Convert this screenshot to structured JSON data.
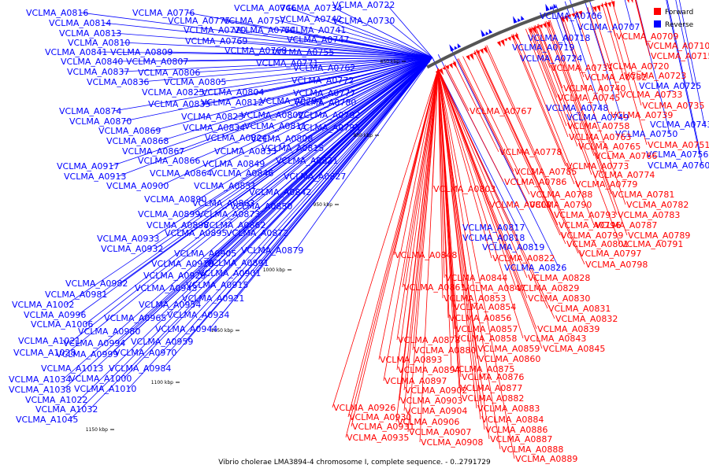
{
  "caption": "Vibrio cholerae LMA3894-4 chromosome I, complete sequence. - 0..2791729",
  "legend": [
    {
      "label": "Forward",
      "color": "#ff0000"
    },
    {
      "label": "Reverse",
      "color": "#0000ff"
    }
  ],
  "colors": {
    "forward": "#ff0000",
    "reverse": "#0000ff",
    "backbone": "#555555"
  },
  "ticks": [
    "850 kbp",
    "900 kbp",
    "950 kbp",
    "1000 kbp",
    "1050 kbp",
    "1100 kbp",
    "1150 kbp"
  ],
  "reverse_labels": [
    "VCLMA_A0816",
    "VCLMA_A0776",
    "VCLMA_A0746",
    "VCLMA_A0734",
    "VCLMA_A0722",
    "VCLMA_A0814",
    "VCLMA_A0775",
    "VCLMA_A0757",
    "VCLMA_A0742",
    "VCLMA_A0730",
    "VCLMA_A0813",
    "VCLMA_A0770",
    "VCLMA_A0754",
    "VCLMA_A0741",
    "VCLMA_A0810",
    "VCLMA_A0769",
    "VCLMA_A0747",
    "VCLMA_A0841",
    "VCLMA_A0809",
    "VCLMA_A0768",
    "VCLMA_A0755",
    "VCLMA_A0840",
    "VCLMA_A0807",
    "VCLMA_A0771",
    "VCLMA_A0837",
    "VCLMA_A0806",
    "VCLMA_A0762",
    "VCLMA_A0836",
    "VCLMA_A0805",
    "VCLMA_A0772",
    "VCLMA_A0825",
    "VCLMA_A0804",
    "VCLMA_A0777",
    "VCLMA_A0835",
    "VCLMA_A0812",
    "VCLMA_A0794",
    "VCLMA_A0780",
    "VCLMA_A0874",
    "VCLMA_A0823",
    "VCLMA_A0802",
    "VCLMA_A0792",
    "VCLMA_A0870",
    "VCLMA_A0834",
    "VCLMA_A0811",
    "VCLMA_A0795",
    "VCLMA_A0869",
    "VCLMA_A0824",
    "VCLMA_A0808",
    "VCLMA_A0868",
    "VCLMA_A0833",
    "VCLMA_A0815",
    "VCLMA_A0867",
    "VCLMA_A0866",
    "VCLMA_A0849",
    "VCLMA_A0821",
    "VCLMA_A0917",
    "VCLMA_A0864",
    "VCLMA_A0846",
    "VCLMA_A0827",
    "VCLMA_A0913",
    "VCLMA_A0851",
    "VCLMA_A0842",
    "VCLMA_A0900",
    "VCLMA_A0890",
    "VCLMA_A0863",
    "VCLMA_A0850",
    "VCLMA_A0899",
    "VCLMA_A0873",
    "VCLMA_A0898",
    "VCLMA_A0862",
    "VCLMA_A0895",
    "VCLMA_A0872",
    "VCLMA_A0933",
    "VCLMA_A0932",
    "VCLMA_A0905",
    "VCLMA_A0879",
    "VCLMA_A0919",
    "VCLMA_A0891",
    "VCLMA_A0929",
    "VCLMA_A0901",
    "VCLMA_A0982",
    "VCLMA_A0943",
    "VCLMA_A0915",
    "VCLMA_A0981",
    "VCLMA_A0921",
    "VCLMA_A1002",
    "VCLMA_A0954",
    "VCLMA_A0996",
    "VCLMA_A0965",
    "VCLMA_A0934",
    "VCLMA_A1006",
    "VCLMA_A0980",
    "VCLMA_A0944",
    "VCLMA_A1021",
    "VCLMA_A0994",
    "VCLMA_A0959",
    "VCLMA_A1028",
    "VCLMA_A0999",
    "VCLMA_A0970",
    "VCLMA_A1013",
    "VCLMA_A0984",
    "VCLMA_A1034",
    "VCLMA_A1000",
    "VCLMA_A1038",
    "VCLMA_A1010",
    "VCLMA_A1022",
    "VCLMA_A1032",
    "VCLMA_A1045",
    "VCLMA_A0706",
    "VCLMA_A0707",
    "VCLMA_A0718",
    "VCLMA_A0719",
    "VCLMA_A0724",
    "VCLMA_A0725",
    "VCLMA_A0748",
    "VCLMA_A0749",
    "VCLMA_A0743",
    "VCLMA_A0750",
    "VCLMA_A0756",
    "VCLMA_A0760",
    "VCLMA_A0817",
    "VCLMA_A0818",
    "VCLMA_A0819",
    "VCLMA_A0826"
  ],
  "forward_labels": [
    "VCLMA_A0709",
    "VCLMA_A0710",
    "VCLMA_A0715",
    "VCLMA_A0720",
    "VCLMA_A0731",
    "VCLMA_A0723",
    "VCLMA_A0732",
    "VCLMA_A0740",
    "VCLMA_A0733",
    "VCLMA_A0745",
    "VCLMA_A0735",
    "VCLMA_A0767",
    "VCLMA_A0739",
    "VCLMA_A0758",
    "VCLMA_A0763",
    "VCLMA_A0765",
    "VCLMA_A0751",
    "VCLMA_A0766",
    "VCLMA_A0778",
    "VCLMA_A0773",
    "VCLMA_A0785",
    "VCLMA_A0774",
    "VCLMA_A0786",
    "VCLMA_A0779",
    "VCLMA_A0803",
    "VCLMA_A0788",
    "VCLMA_A0781",
    "VCLMA_A0800",
    "VCLMA_A0790",
    "VCLMA_A0782",
    "VCLMA_A0793",
    "VCLMA_A0783",
    "VCLMA_A0796",
    "VCLMA_A0787",
    "VCLMA_A0799",
    "VCLMA_A0789",
    "VCLMA_A0801",
    "VCLMA_A0791",
    "VCLMA_A0797",
    "VCLMA_A0848",
    "VCLMA_A0822",
    "VCLMA_A0798",
    "VCLMA_A0828",
    "VCLMA_A0844",
    "VCLMA_A0847",
    "VCLMA_A0829",
    "VCLMA_A0861",
    "VCLMA_A0853",
    "VCLMA_A0830",
    "VCLMA_A0854",
    "VCLMA_A0831",
    "VCLMA_A0856",
    "VCLMA_A0832",
    "VCLMA_A0857",
    "VCLMA_A0839",
    "VCLMA_A0878",
    "VCLMA_A0858",
    "VCLMA_A0843",
    "VCLMA_A0880",
    "VCLMA_A0859",
    "VCLMA_A0845",
    "VCLMA_A0893",
    "VCLMA_A0860",
    "VCLMA_A0894",
    "VCLMA_A0875",
    "VCLMA_A0897",
    "VCLMA_A0876",
    "VCLMA_A0902",
    "VCLMA_A0877",
    "VCLMA_A0903",
    "VCLMA_A0882",
    "VCLMA_A0926",
    "VCLMA_A0904",
    "VCLMA_A0883",
    "VCLMA_A0930",
    "VCLMA_A0906",
    "VCLMA_A0884",
    "VCLMA_A0931",
    "VCLMA_A0907",
    "VCLMA_A0886",
    "VCLMA_A0935",
    "VCLMA_A0908",
    "VCLMA_A0887",
    "VCLMA_A0888",
    "VCLMA_A0889"
  ]
}
